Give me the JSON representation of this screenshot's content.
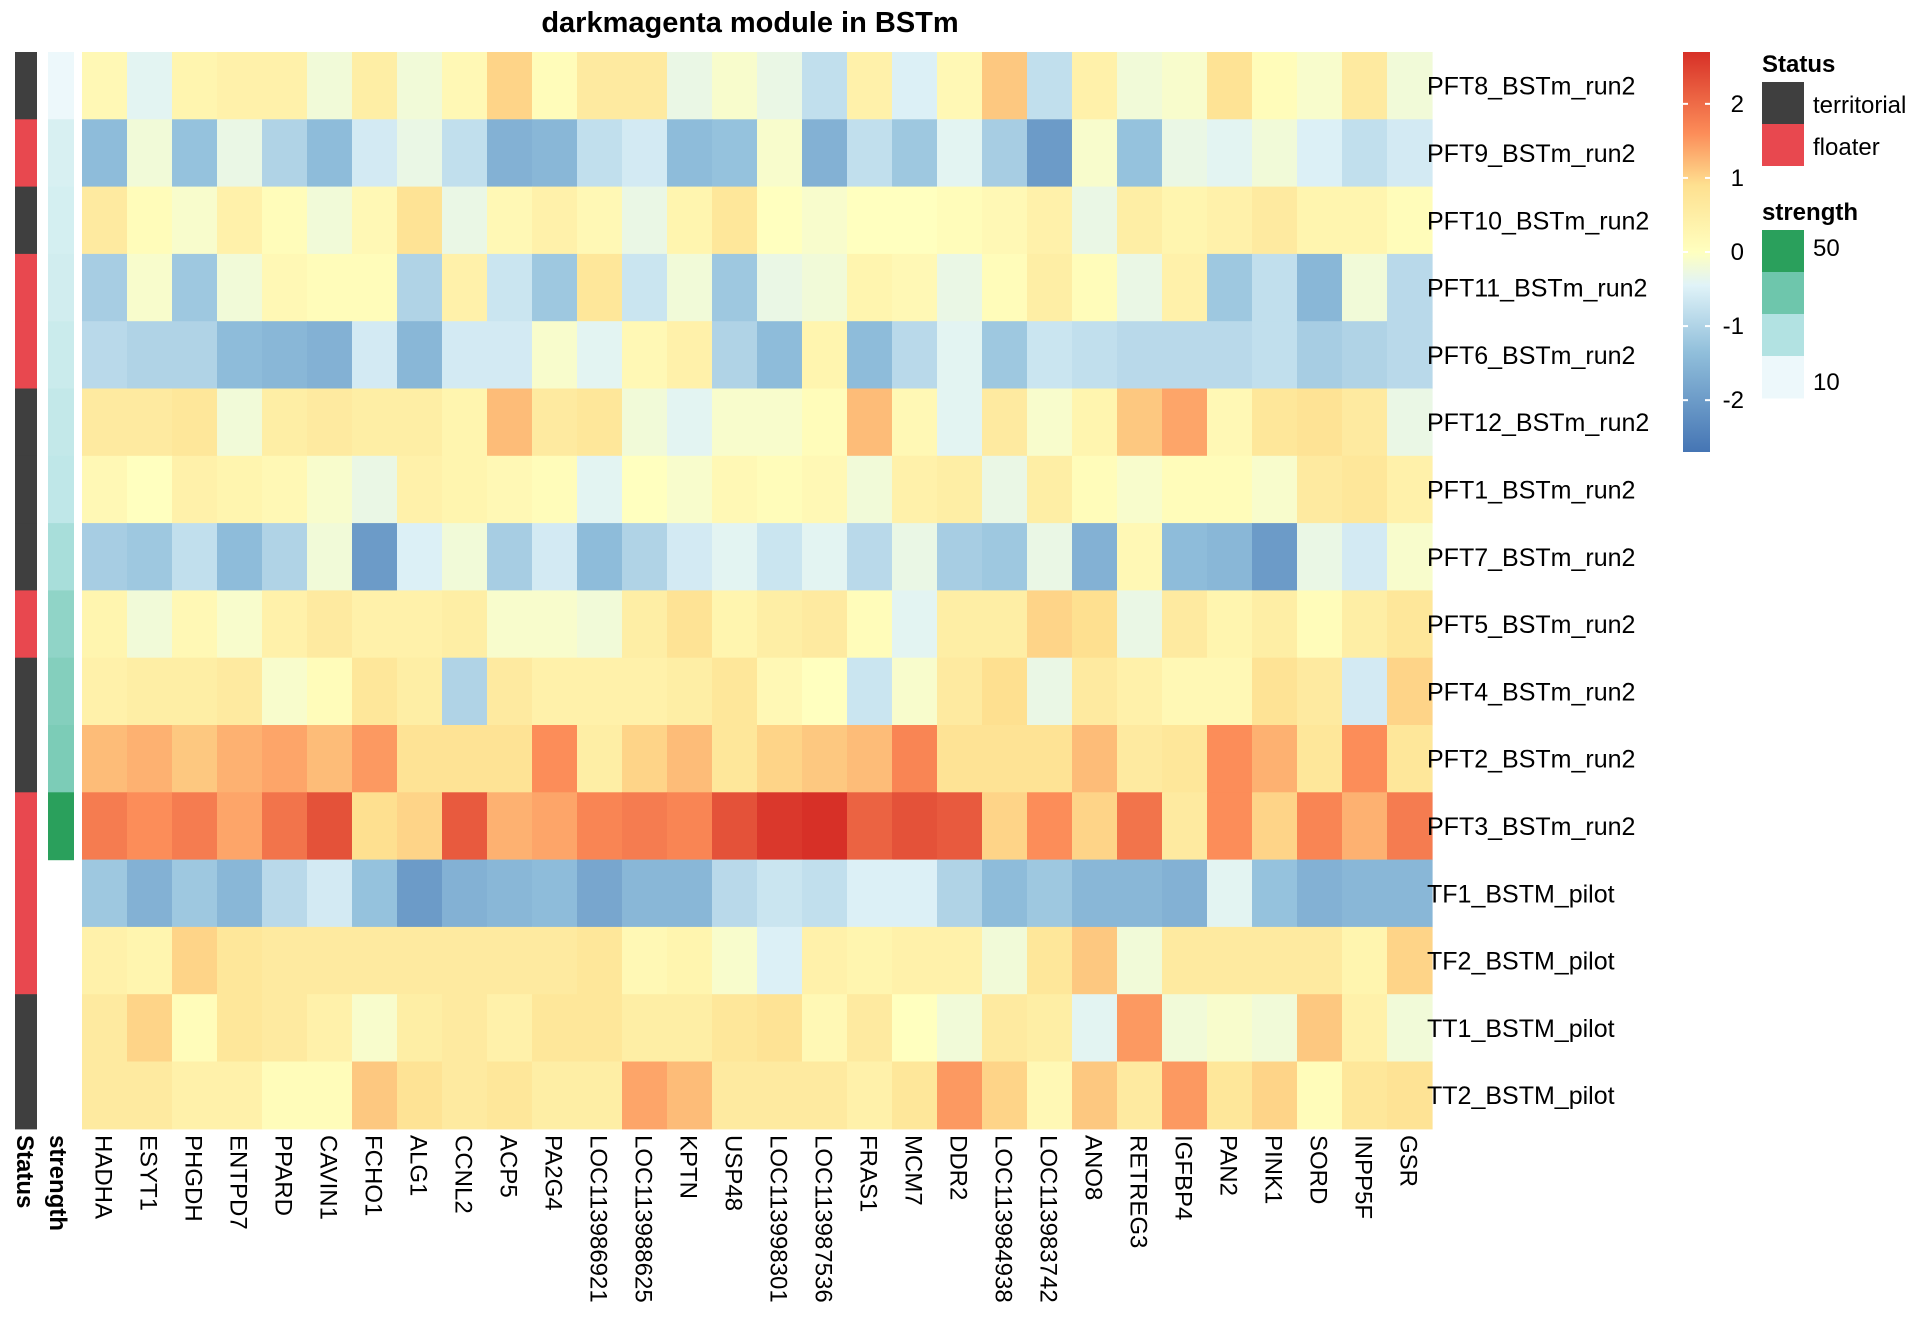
{
  "chart_data": {
    "type": "heatmap",
    "title": "darkmagenta module in BSTm",
    "rows": [
      "PFT8_BSTm_run2",
      "PFT9_BSTm_run2",
      "PFT10_BSTm_run2",
      "PFT11_BSTm_run2",
      "PFT6_BSTm_run2",
      "PFT12_BSTm_run2",
      "PFT1_BSTm_run2",
      "PFT7_BSTm_run2",
      "PFT5_BSTm_run2",
      "PFT4_BSTm_run2",
      "PFT2_BSTm_run2",
      "PFT3_BSTm_run2",
      "TF1_BSTM_pilot",
      "TF2_BSTM_pilot",
      "TT1_BSTM_pilot",
      "TT2_BSTM_pilot"
    ],
    "columns": [
      "HADHA",
      "ESYT1",
      "PHGDH",
      "ENTPD7",
      "PPARD",
      "CAVIN1",
      "FCHO1",
      "ALG1",
      "CCNL2",
      "ACP5",
      "PA2G4",
      "LOC113986921",
      "LOC113988625",
      "KPTN",
      "USP48",
      "LOC113998301",
      "LOC113987536",
      "FRAS1",
      "MCM7",
      "DDR2",
      "LOC113984938",
      "LOC113983742",
      "ANO8",
      "RETREG3",
      "IGFBP4",
      "PAN2",
      "PINK1",
      "SORD",
      "INPP5F",
      "GSR"
    ],
    "values": [
      [
        0.2,
        -0.4,
        0.3,
        0.4,
        0.4,
        -0.2,
        0.5,
        -0.2,
        0.2,
        1.0,
        0.1,
        0.6,
        0.6,
        -0.3,
        -0.1,
        -0.3,
        -0.8,
        0.4,
        -0.5,
        0.2,
        1.1,
        -0.8,
        0.4,
        -0.2,
        -0.1,
        0.8,
        0.1,
        -0.1,
        0.6,
        -0.2
      ],
      [
        -1.4,
        -0.2,
        -1.3,
        -0.3,
        -1.0,
        -1.4,
        -0.6,
        -0.3,
        -0.8,
        -1.6,
        -1.5,
        -0.8,
        -0.6,
        -1.4,
        -1.3,
        -0.1,
        -1.6,
        -0.8,
        -1.2,
        -0.4,
        -1.1,
        -2.0,
        -0.1,
        -1.3,
        -0.3,
        -0.4,
        -0.2,
        -0.5,
        -0.8,
        -0.6
      ],
      [
        0.6,
        0.1,
        -0.1,
        0.4,
        0.1,
        -0.2,
        0.2,
        0.8,
        -0.3,
        0.2,
        0.4,
        0.2,
        -0.3,
        0.3,
        0.7,
        0.0,
        -0.1,
        0.0,
        0.0,
        0.1,
        0.2,
        0.4,
        -0.3,
        0.5,
        0.3,
        0.4,
        0.6,
        0.3,
        0.3,
        0.1
      ],
      [
        -1.1,
        -0.1,
        -1.2,
        -0.2,
        0.2,
        0.1,
        0.1,
        -1.0,
        0.4,
        -0.7,
        -1.2,
        0.7,
        -0.7,
        -0.2,
        -1.2,
        -0.3,
        -0.2,
        0.3,
        0.2,
        -0.3,
        0.1,
        0.5,
        0.1,
        -0.3,
        0.4,
        -1.2,
        -0.8,
        -1.5,
        -0.2,
        -0.9
      ],
      [
        -0.9,
        -1.0,
        -1.0,
        -1.4,
        -1.5,
        -1.6,
        -0.6,
        -1.5,
        -0.6,
        -0.6,
        -0.1,
        -0.4,
        0.2,
        0.4,
        -1.0,
        -1.4,
        0.3,
        -1.4,
        -0.9,
        -0.4,
        -1.2,
        -0.7,
        -0.8,
        -0.9,
        -0.9,
        -0.9,
        -0.8,
        -1.1,
        -1.0,
        -0.9
      ],
      [
        0.6,
        0.6,
        0.7,
        -0.2,
        0.5,
        0.6,
        0.5,
        0.5,
        0.3,
        1.2,
        0.6,
        0.7,
        -0.2,
        -0.4,
        -0.1,
        -0.1,
        0.1,
        1.2,
        0.2,
        -0.4,
        0.6,
        -0.1,
        0.3,
        1.1,
        1.4,
        0.2,
        0.7,
        0.8,
        0.6,
        -0.3
      ],
      [
        0.2,
        0.0,
        0.4,
        0.3,
        0.2,
        -0.1,
        -0.3,
        0.4,
        0.3,
        0.2,
        0.1,
        -0.4,
        0.0,
        -0.1,
        0.2,
        0.1,
        0.2,
        -0.2,
        0.4,
        0.5,
        -0.3,
        0.5,
        0.1,
        -0.1,
        0.1,
        0.1,
        -0.1,
        0.6,
        0.7,
        0.4
      ],
      [
        -1.1,
        -1.2,
        -0.8,
        -1.4,
        -1.0,
        -0.2,
        -2.0,
        -0.5,
        -0.2,
        -1.1,
        -0.6,
        -1.4,
        -1.0,
        -0.6,
        -0.4,
        -0.7,
        -0.4,
        -0.9,
        -0.3,
        -1.1,
        -1.2,
        -0.3,
        -1.6,
        0.2,
        -1.4,
        -1.5,
        -2.0,
        -0.3,
        -0.6,
        -0.1
      ],
      [
        0.3,
        -0.2,
        0.2,
        -0.1,
        0.4,
        0.6,
        0.4,
        0.4,
        0.5,
        -0.1,
        -0.1,
        -0.2,
        0.5,
        0.8,
        0.3,
        0.5,
        0.6,
        0.1,
        -0.4,
        0.5,
        0.5,
        1.0,
        0.9,
        -0.3,
        0.6,
        0.3,
        0.5,
        0.1,
        0.5,
        0.7
      ],
      [
        0.4,
        0.5,
        0.5,
        0.6,
        -0.1,
        0.1,
        0.7,
        0.5,
        -1.0,
        0.6,
        0.4,
        0.4,
        0.4,
        0.5,
        0.7,
        0.2,
        0.0,
        -0.7,
        -0.1,
        0.6,
        0.9,
        -0.3,
        0.6,
        0.4,
        0.2,
        0.2,
        0.8,
        0.6,
        -0.6,
        1.0
      ],
      [
        1.2,
        1.3,
        1.1,
        1.3,
        1.4,
        1.2,
        1.5,
        0.8,
        0.8,
        0.8,
        1.6,
        0.5,
        1.0,
        1.2,
        0.7,
        1.0,
        1.1,
        1.2,
        1.7,
        0.8,
        0.8,
        0.8,
        1.2,
        0.6,
        0.7,
        1.6,
        1.3,
        0.7,
        1.6,
        0.7
      ],
      [
        1.8,
        1.6,
        1.8,
        1.4,
        1.9,
        2.3,
        0.9,
        1.0,
        2.2,
        1.3,
        1.4,
        1.7,
        1.8,
        1.7,
        2.3,
        2.6,
        2.7,
        2.1,
        2.3,
        2.2,
        1.0,
        1.6,
        1.0,
        1.9,
        0.6,
        1.6,
        1.0,
        1.7,
        1.3,
        1.8
      ],
      [
        -1.2,
        -1.6,
        -1.2,
        -1.5,
        -0.9,
        -0.6,
        -1.3,
        -2.0,
        -1.6,
        -1.5,
        -1.4,
        -1.8,
        -1.5,
        -1.5,
        -0.9,
        -0.7,
        -0.8,
        -0.5,
        -0.5,
        -1.0,
        -1.4,
        -1.2,
        -1.5,
        -1.5,
        -1.6,
        -0.4,
        -1.3,
        -1.6,
        -1.5,
        -1.5
      ],
      [
        0.4,
        0.3,
        1.0,
        0.7,
        0.6,
        0.6,
        0.6,
        0.6,
        0.6,
        0.6,
        0.6,
        0.7,
        0.2,
        0.3,
        -0.1,
        -0.5,
        0.4,
        0.3,
        0.4,
        0.4,
        -0.2,
        0.7,
        1.1,
        -0.2,
        0.6,
        0.6,
        0.6,
        0.6,
        0.3,
        1.0
      ],
      [
        0.6,
        1.0,
        0.1,
        0.7,
        0.6,
        0.4,
        -0.1,
        0.5,
        0.6,
        0.4,
        0.7,
        0.7,
        0.5,
        0.5,
        0.7,
        0.8,
        0.2,
        0.6,
        0.0,
        -0.2,
        0.6,
        0.5,
        -0.4,
        1.5,
        -0.2,
        -0.1,
        -0.2,
        1.1,
        0.4,
        -0.2
      ],
      [
        0.6,
        0.6,
        0.4,
        0.4,
        0.1,
        0.1,
        1.1,
        0.8,
        0.6,
        0.7,
        0.5,
        0.5,
        1.4,
        1.2,
        0.6,
        0.6,
        0.6,
        0.4,
        0.7,
        1.5,
        1.0,
        0.2,
        1.1,
        0.6,
        1.5,
        0.7,
        1.0,
        0.1,
        0.7,
        0.8
      ]
    ],
    "annotations": {
      "Status": [
        "territorial",
        "floater",
        "territorial",
        "floater",
        "floater",
        "territorial",
        "territorial",
        "territorial",
        "floater",
        "territorial",
        "territorial",
        "floater",
        "floater",
        "floater",
        "territorial",
        "territorial"
      ],
      "strength": [
        5,
        11,
        12,
        13,
        15,
        17,
        18,
        24,
        30,
        33,
        35,
        55,
        null,
        null,
        null,
        null
      ]
    },
    "annotation_labels": [
      "Status",
      "strength"
    ],
    "color_scale": {
      "min": -2.7,
      "max": 2.7,
      "ticks": [
        -2,
        -1,
        0,
        1,
        2
      ],
      "stops": [
        {
          "value": -2.7,
          "color": "#4575b4"
        },
        {
          "value": -1.35,
          "color": "#91bfdb"
        },
        {
          "value": -0.45,
          "color": "#e0f3f8"
        },
        {
          "value": 0,
          "color": "#ffffbf"
        },
        {
          "value": 0.9,
          "color": "#fee090"
        },
        {
          "value": 1.6,
          "color": "#fc8d59"
        },
        {
          "value": 2.7,
          "color": "#d73027"
        }
      ]
    },
    "legend": {
      "status": {
        "title": "Status",
        "items": [
          {
            "label": "territorial",
            "color": "#3f3f3f"
          },
          {
            "label": "floater",
            "color": "#e8484f"
          }
        ]
      },
      "strength": {
        "title": "strength",
        "ticks": [
          50,
          10
        ],
        "min": 5,
        "max": 55,
        "colors": [
          "#2aa05c",
          "#6ec6ac",
          "#b2e2e2",
          "#edf8fb"
        ]
      }
    }
  }
}
